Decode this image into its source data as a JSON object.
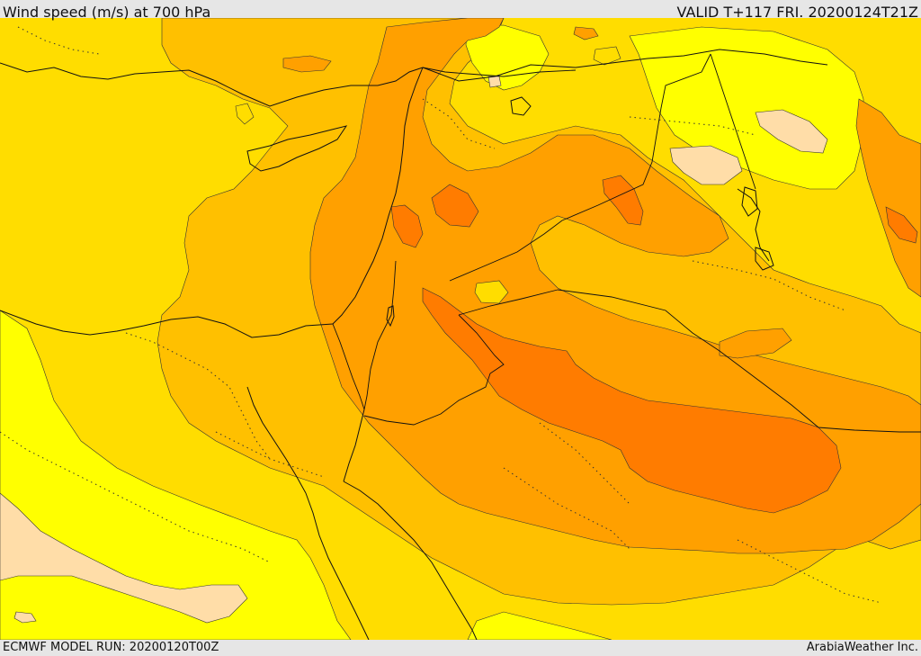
{
  "header": {
    "title": "Wind speed (m/s) at 700 hPa",
    "valid": "VALID T+117 FRI. 20200124T21Z"
  },
  "footer": {
    "model_run": "ECMWF MODEL RUN: 20200120T00Z",
    "credit": "ArabiaWeather Inc."
  },
  "map": {
    "variable": "wind speed",
    "level": "700 hPa",
    "units": "m/s",
    "palette": {
      "lightest": "#ffdda8",
      "light_yellow": "#ffff00",
      "yellow": "#ffdd00",
      "gold": "#ffc000",
      "orange": "#ffa000",
      "dark_orange": "#ff7c00",
      "contour": "#333333",
      "border": "#000000"
    }
  }
}
